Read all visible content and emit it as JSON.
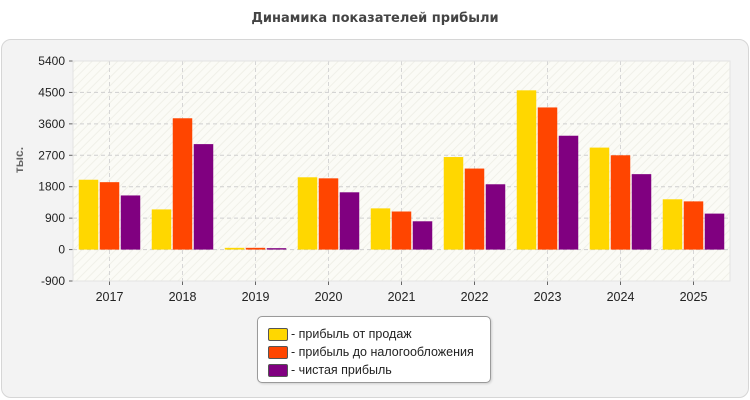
{
  "chart_data": {
    "type": "bar",
    "title": "Динамика показателей прибыли",
    "ylabel": "тыс.",
    "xlabel": "",
    "categories": [
      "2017",
      "2018",
      "2019",
      "2020",
      "2021",
      "2022",
      "2023",
      "2024",
      "2025"
    ],
    "series": [
      {
        "name": "- прибыль от продаж",
        "color": "#ffd700",
        "values": [
          2000,
          1150,
          50,
          2070,
          1180,
          2650,
          4560,
          2920,
          1440
        ]
      },
      {
        "name": "- прибыль до налогообложения",
        "color": "#ff4500",
        "values": [
          1930,
          3760,
          50,
          2040,
          1090,
          2320,
          4070,
          2700,
          1380
        ]
      },
      {
        "name": "- чистая прибыль",
        "color": "#800080",
        "values": [
          1550,
          3020,
          40,
          1640,
          810,
          1870,
          3260,
          2160,
          1030
        ]
      }
    ],
    "ylim": [
      -900,
      5400
    ],
    "yticks": [
      "5400",
      "4500",
      "3600",
      "2700",
      "1800",
      "900",
      "0",
      "-900"
    ],
    "grid": true,
    "legend_position": "bottom-center"
  }
}
